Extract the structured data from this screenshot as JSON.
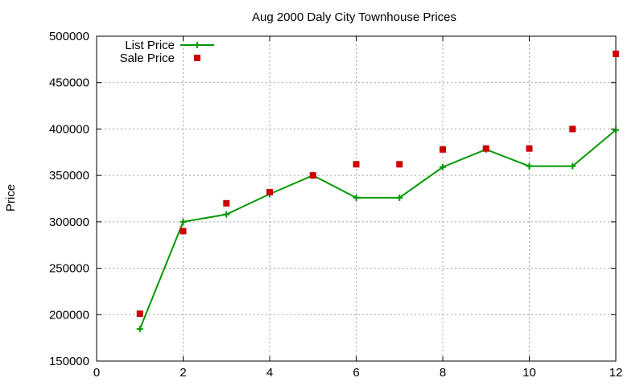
{
  "chart_data": {
    "type": "line",
    "title": "Aug 2000 Daly City Townhouse Prices",
    "xlabel": "",
    "ylabel": "Price",
    "xlim": [
      0,
      12
    ],
    "ylim": [
      150000,
      500000
    ],
    "x_ticks": [
      0,
      2,
      4,
      6,
      8,
      10,
      12
    ],
    "y_ticks": [
      150000,
      200000,
      250000,
      300000,
      350000,
      400000,
      450000,
      500000
    ],
    "grid": true,
    "legend_position": "top-left",
    "series": [
      {
        "name": "List Price",
        "style": "line-points",
        "color": "#009900",
        "x": [
          1,
          2,
          3,
          4,
          5,
          6,
          7,
          8,
          9,
          10,
          11,
          12
        ],
        "y": [
          184500,
          300000,
          308000,
          330000,
          350000,
          326000,
          326000,
          359000,
          378000,
          360000,
          360000,
          399000
        ]
      },
      {
        "name": "Sale Price",
        "style": "points",
        "color": "#cc0000",
        "x": [
          1,
          2,
          3,
          4,
          5,
          6,
          7,
          8,
          9,
          10,
          11,
          12
        ],
        "y": [
          201000,
          290000,
          320000,
          332000,
          350000,
          362000,
          362000,
          378000,
          379000,
          379000,
          400000,
          481000
        ]
      }
    ]
  }
}
